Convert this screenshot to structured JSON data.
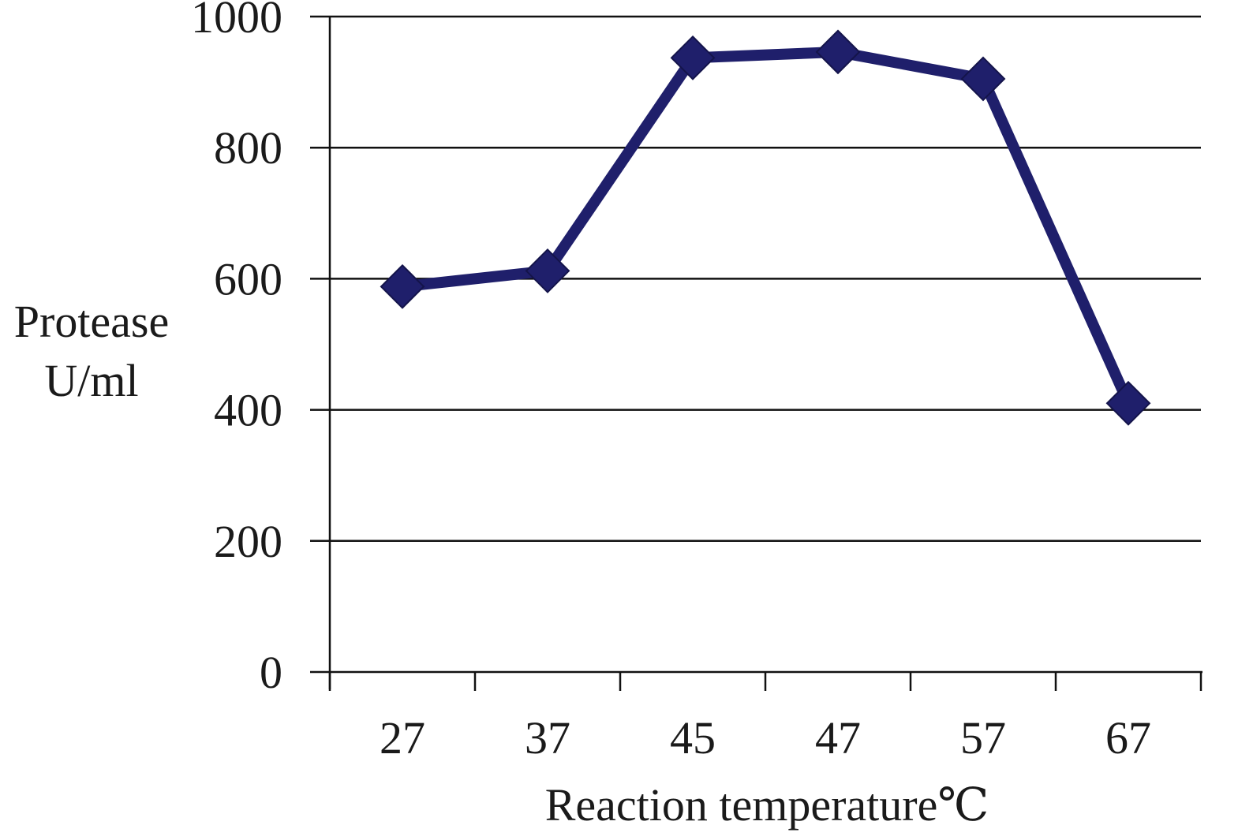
{
  "chart_data": {
    "type": "line",
    "categories": [
      "27",
      "37",
      "45",
      "47",
      "57",
      "67"
    ],
    "series": [
      {
        "values": [
          588,
          612,
          937,
          946,
          905,
          410
        ]
      }
    ],
    "xlabel": "Reaction temperature℃",
    "ylabel_lines": [
      "Protease",
      "U/ml"
    ],
    "ylim": [
      0,
      1000
    ],
    "yticks": [
      0,
      200,
      400,
      600,
      800,
      1000
    ],
    "grid": "horizontal",
    "colors": {
      "line": "#1f1f6b",
      "marker": "#1f1f6b",
      "grid": "#111111",
      "axis": "#111111"
    }
  }
}
